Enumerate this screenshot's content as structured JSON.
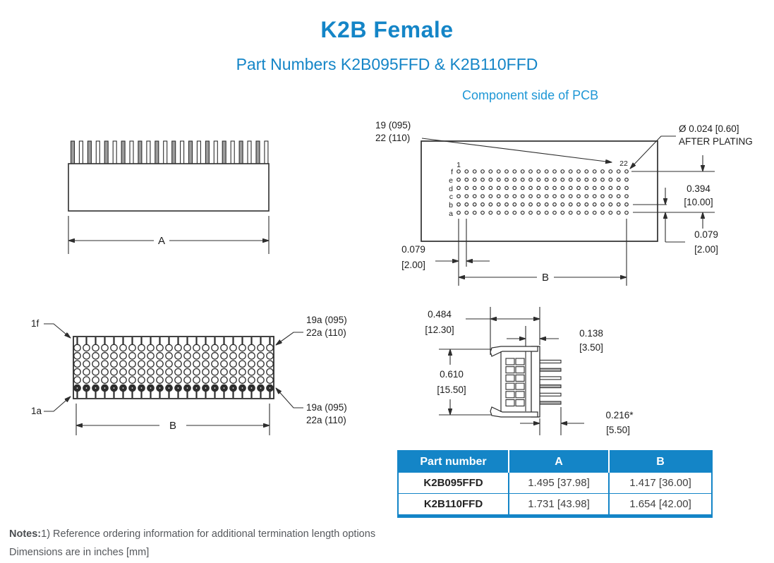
{
  "title": "K2B Female",
  "subtitle": "Part Numbers K2B095FFD & K2B110FFD",
  "pcb_view": {
    "heading": "Component side of PCB",
    "label_19": "19 (095)",
    "label_22": "22 (110)",
    "hole_note_line1": "Ø 0.024 [0.60]",
    "hole_note_line2": "AFTER PLATING",
    "col_first": "1",
    "col_last": "22",
    "row_labels": [
      "f",
      "e",
      "d",
      "c",
      "b",
      "a"
    ],
    "dim_row_span": "0.394",
    "dim_row_span_mm": "[10.00]",
    "dim_row_pitch": "0.079",
    "dim_row_pitch_mm": "[2.00]",
    "dim_col_pitch": "0.079",
    "dim_col_pitch_mm": "[2.00]",
    "dim_b": "B"
  },
  "front_view": {
    "dim_a": "A"
  },
  "top_view": {
    "label_1f": "1f",
    "label_1a": "1a",
    "label_tr_line1": "19a (095)",
    "label_tr_line2": "22a (110)",
    "label_br_line1": "19a (095)",
    "label_br_line2": "22a (110)",
    "dim_b": "B"
  },
  "side_view": {
    "dim_width": "0.484",
    "dim_width_mm": "[12.30]",
    "dim_wall": "0.138",
    "dim_wall_mm": "[3.50]",
    "dim_height": "0.610",
    "dim_height_mm": "[15.50]",
    "dim_pin": "0.216*",
    "dim_pin_mm": "[5.50]"
  },
  "table": {
    "headers": [
      "Part number",
      "A",
      "B"
    ],
    "rows": [
      {
        "part": "K2B095FFD",
        "a": "1.495 [37.98]",
        "b": "1.417 [36.00]"
      },
      {
        "part": "K2B110FFD",
        "a": "1.731 [43.98]",
        "b": "1.654 [42.00]"
      }
    ]
  },
  "notes": {
    "label": "Notes:",
    "line1": "1) Reference ordering information for additional termination length options",
    "line2": "Dimensions are in inches [mm]"
  },
  "colors": {
    "accent": "#1485c7",
    "heading_blue": "#1e97d6",
    "line": "#2e2e2e"
  }
}
